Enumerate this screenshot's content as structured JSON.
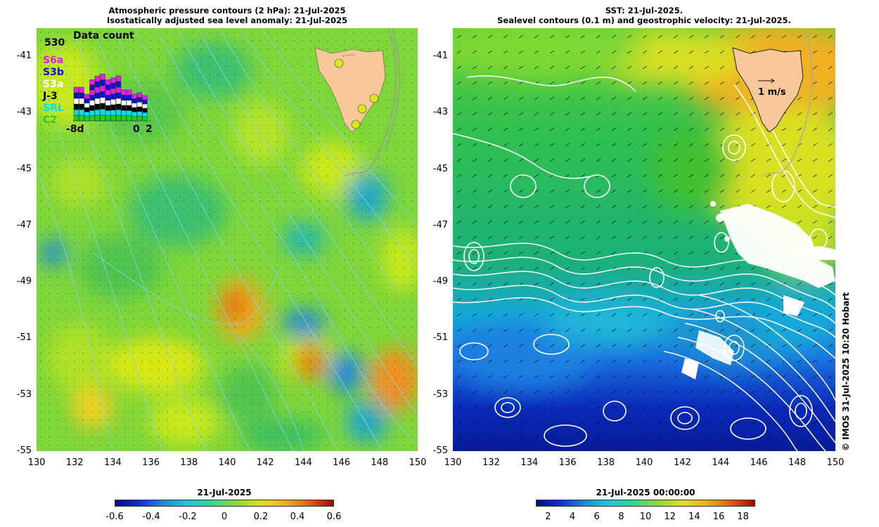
{
  "left_panel": {
    "title_line1": "Atmospheric pressure contours (2 hPa): 21-Jul-2025",
    "title_line2": "Isostatically adjusted sea level anomaly: 21-Jul-2025",
    "inset": {
      "title": "Data count",
      "max_count": "530",
      "missions": [
        {
          "label": "S6a",
          "color": "#e020e0"
        },
        {
          "label": "S3b",
          "color": "#1010d0"
        },
        {
          "label": "S3a",
          "color": "#ffffff"
        },
        {
          "label": "J-3",
          "color": "#000000"
        },
        {
          "label": "SRL",
          "color": "#00e0f0"
        },
        {
          "label": "C2",
          "color": "#20d020"
        }
      ],
      "x_start": "-8d",
      "x_mid": "0",
      "x_end": "2"
    },
    "colorbar": {
      "title": "21-Jul-2025",
      "ticks": [
        "-0.6",
        "-0.4",
        "-0.2",
        "0",
        "0.2",
        "0.4",
        "0.6"
      ],
      "range": [
        -0.6,
        0.6
      ]
    }
  },
  "right_panel": {
    "title_line1": "SST: 21-Jul-2025.",
    "title_line2": "Sealevel contours (0.1 m) and geostrophic velocity: 21-Jul-2025.",
    "velocity_scale_label": "1 m/s",
    "colorbar": {
      "title": "21-Jul-2025 00:00:00",
      "ticks": [
        "2",
        "4",
        "6",
        "8",
        "10",
        "12",
        "14",
        "16",
        "18"
      ],
      "range": [
        1,
        19
      ]
    }
  },
  "axes": {
    "lat_ticks": [
      "-41",
      "-43",
      "-45",
      "-47",
      "-49",
      "-51",
      "-53",
      "-55"
    ],
    "lon_ticks": [
      "130",
      "132",
      "134",
      "136",
      "138",
      "140",
      "142",
      "144",
      "146",
      "148",
      "150"
    ],
    "lat_range": [
      -55,
      -40
    ],
    "lon_range": [
      130,
      150
    ]
  },
  "copyright": "© IMOS 31-Jul-2025 10:20 Hobart",
  "colors": {
    "land": "#f9c89a",
    "cloud_mask": "#ffffff",
    "left_contour": "#7ad8e8",
    "right_contour": "#ffffff"
  }
}
